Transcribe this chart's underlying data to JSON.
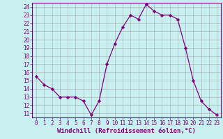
{
  "x": [
    0,
    1,
    2,
    3,
    4,
    5,
    6,
    7,
    8,
    9,
    10,
    11,
    12,
    13,
    14,
    15,
    16,
    17,
    18,
    19,
    20,
    21,
    22,
    23
  ],
  "y": [
    15.5,
    14.5,
    14.0,
    13.0,
    13.0,
    13.0,
    12.5,
    10.8,
    12.5,
    17.0,
    19.5,
    21.5,
    23.0,
    22.5,
    24.3,
    23.5,
    23.0,
    23.0,
    22.5,
    19.0,
    15.0,
    12.5,
    11.5,
    10.8
  ],
  "line_color": "#800080",
  "marker": "D",
  "marker_size": 2.2,
  "bg_color": "#c8f0f0",
  "grid_color": "#b0b0b0",
  "xlabel": "Windchill (Refroidissement éolien,°C)",
  "xlabel_color": "#800080",
  "ylabel_ticks": [
    11,
    12,
    13,
    14,
    15,
    16,
    17,
    18,
    19,
    20,
    21,
    22,
    23,
    24
  ],
  "xlim": [
    -0.5,
    23.5
  ],
  "ylim": [
    10.5,
    24.5
  ],
  "tick_color": "#800080",
  "axis_color": "#800080",
  "tick_fontsize": 5.5,
  "xlabel_fontsize": 6.5
}
